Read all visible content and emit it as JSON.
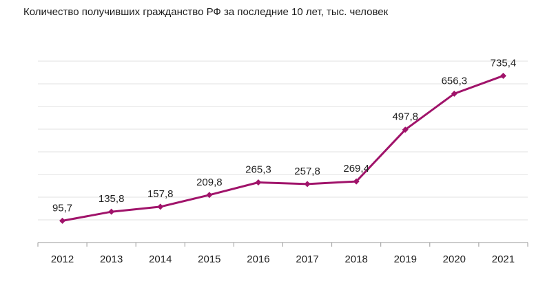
{
  "chart_data": {
    "type": "line",
    "title": "Количество получивших гражданство РФ за последние 10 лет, тыс. человек",
    "categories": [
      "2012",
      "2013",
      "2014",
      "2015",
      "2016",
      "2017",
      "2018",
      "2019",
      "2020",
      "2021"
    ],
    "values": [
      95.7,
      135.8,
      157.8,
      209.8,
      265.3,
      257.8,
      269.4,
      497.8,
      656.3,
      735.4
    ],
    "data_labels": [
      "95,7",
      "135,8",
      "157,8",
      "209,8",
      "265,3",
      "257,8",
      "269,4",
      "497,8",
      "656,3",
      "735,4"
    ],
    "series_color": "#a0136a",
    "grid_color": "#e0e0e0",
    "ylim": [
      0,
      800
    ],
    "grid": true,
    "legend": false
  }
}
